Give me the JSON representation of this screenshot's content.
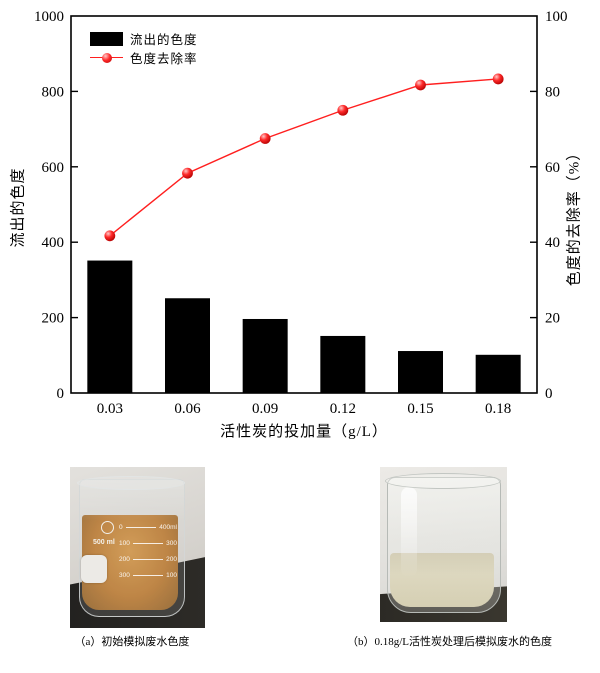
{
  "chart_data": {
    "type": "bar+line dual-axis",
    "categories": [
      "0.03",
      "0.06",
      "0.09",
      "0.12",
      "0.15",
      "0.18"
    ],
    "series": [
      {
        "name": "流出的色度",
        "type": "bar",
        "axis": "left",
        "values": [
          350,
          250,
          195,
          150,
          110,
          100
        ]
      },
      {
        "name": "色度去除率",
        "type": "line",
        "axis": "right",
        "values": [
          41.7,
          58.3,
          67.5,
          75.0,
          81.7,
          83.3
        ]
      }
    ],
    "left_axis": {
      "title": "流出的色度",
      "min": 0,
      "max": 1000,
      "ticks": [
        0,
        200,
        400,
        600,
        800,
        1000
      ]
    },
    "right_axis": {
      "title": "色度的去除率（%）",
      "min": 0,
      "max": 100,
      "ticks": [
        0,
        20,
        40,
        60,
        80,
        100
      ]
    },
    "x_axis": {
      "title": "活性炭的投加量（g/L）"
    },
    "legend": {
      "bar_label": "流出的色度",
      "line_label": "色度去除率",
      "position": "top-left-inside"
    },
    "colors": {
      "bar": "#000000",
      "line": "#ff1f1f",
      "marker": "#e00000",
      "frame": "#000000"
    },
    "grid": "off"
  },
  "photos": {
    "a": {
      "caption": "（a）初始模拟废水色度",
      "beaker_volume_label": "500 ml",
      "graduation_rows": [
        {
          "left": "0",
          "right": "400ml"
        },
        {
          "left": "100",
          "right": "300"
        },
        {
          "left": "200",
          "right": "200"
        },
        {
          "left": "300",
          "right": "100"
        }
      ]
    },
    "b": {
      "caption": "（b）0.18g/L活性炭处理后模拟废水的色度"
    }
  }
}
